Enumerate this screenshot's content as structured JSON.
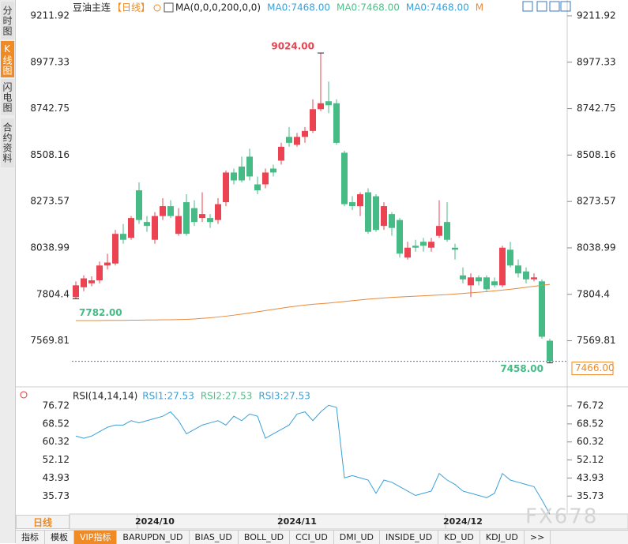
{
  "chart_data": [
    {
      "type": "candlestick",
      "title": "豆油主连",
      "period": "【日线】",
      "indicator": "MA(0,0,0,200,0,0)",
      "legend": [
        {
          "label": "MA0:7468.00",
          "color": "#3aa0d8"
        },
        {
          "label": "MA0:7468.00",
          "color": "#4fbf8a"
        },
        {
          "label": "MA0:7468.00",
          "color": "#3aa0d8"
        },
        {
          "label": "M",
          "color": "#e8883a"
        }
      ],
      "categories": [
        null,
        null,
        null,
        null,
        null,
        null,
        null,
        null,
        null,
        null,
        "2024/10",
        null,
        null,
        null,
        null,
        null,
        null,
        null,
        null,
        null,
        null,
        null,
        null,
        null,
        null,
        null,
        null,
        null,
        "2024/11",
        null,
        null,
        null,
        null,
        null,
        null,
        null,
        null,
        null,
        null,
        null,
        null,
        null,
        null,
        null,
        null,
        null,
        null,
        null,
        null,
        "2024/12",
        null,
        null,
        null,
        null,
        null,
        null,
        null,
        null,
        null,
        null,
        null
      ],
      "open": [
        7790,
        7840,
        7860,
        7875,
        7950,
        7960,
        8110,
        8090,
        8330,
        8170,
        8080,
        8200,
        8250,
        8110,
        8270,
        8240,
        8190,
        8190,
        8180,
        8270,
        8420,
        8450,
        8500,
        8360,
        8360,
        8440,
        8480,
        8600,
        8560,
        8600,
        8630,
        8740,
        8780,
        8770,
        8520,
        8270,
        8250,
        8320,
        8300,
        8150,
        8210,
        8180,
        7990,
        8050,
        8070,
        8040,
        8100,
        8170,
        8040,
        7900,
        7850,
        7890,
        7890,
        7870,
        7850,
        8030,
        7950,
        7920,
        7880,
        7870,
        7570
      ],
      "high": [
        7870,
        7900,
        7895,
        7970,
        8010,
        8130,
        8160,
        8200,
        8370,
        8200,
        8220,
        8290,
        8280,
        8240,
        8310,
        8280,
        8320,
        8210,
        8290,
        8430,
        8440,
        8500,
        8540,
        8400,
        8440,
        8460,
        8570,
        8650,
        8620,
        8650,
        8790,
        9024,
        8880,
        8790,
        8530,
        8300,
        8320,
        8340,
        8310,
        8270,
        8220,
        8190,
        8070,
        8080,
        8090,
        8090,
        8280,
        8270,
        8060,
        7940,
        7910,
        7900,
        7900,
        7890,
        8050,
        8070,
        7980,
        7940,
        7910,
        7880,
        7580
      ],
      "low": [
        7782,
        7820,
        7845,
        7860,
        7930,
        7950,
        8060,
        8080,
        8160,
        8120,
        8060,
        8180,
        8190,
        8100,
        8100,
        8150,
        8170,
        8140,
        8160,
        8250,
        8360,
        8370,
        8380,
        8310,
        8340,
        8400,
        8460,
        8550,
        8550,
        8570,
        8620,
        8730,
        8720,
        8560,
        8250,
        8230,
        8200,
        8110,
        8120,
        8130,
        8100,
        7990,
        7980,
        8020,
        8020,
        8020,
        8090,
        8070,
        7980,
        7860,
        7790,
        7850,
        7820,
        7840,
        7840,
        7940,
        7890,
        7860,
        7870,
        7580,
        7458
      ],
      "close": [
        7850,
        7885,
        7875,
        7950,
        7965,
        8110,
        8080,
        8190,
        8180,
        8150,
        8200,
        8250,
        8200,
        8200,
        8110,
        8170,
        8210,
        8170,
        8260,
        8420,
        8380,
        8380,
        8400,
        8330,
        8420,
        8420,
        8550,
        8570,
        8600,
        8630,
        8740,
        8770,
        8760,
        8570,
        8260,
        8250,
        8310,
        8120,
        8130,
        8250,
        8140,
        8010,
        8040,
        8040,
        8050,
        8070,
        8150,
        8080,
        8030,
        7880,
        7890,
        7870,
        7830,
        7850,
        8040,
        7950,
        7910,
        7880,
        7890,
        7590,
        7466
      ],
      "up_color": "#eb4352",
      "down_color": "#46bb86",
      "ma": {
        "color": "#e8883a",
        "values": [
          7672,
          7672,
          7672,
          7672,
          7673,
          7673,
          7673,
          7674,
          7674,
          7675,
          7675,
          7676,
          7676,
          7677,
          7678,
          7680,
          7683,
          7686,
          7690,
          7694,
          7699,
          7704,
          7710,
          7716,
          7722,
          7728,
          7734,
          7740,
          7745,
          7750,
          7754,
          7757,
          7760,
          7764,
          7768,
          7772,
          7776,
          7780,
          7783,
          7786,
          7789,
          7791,
          7793,
          7795,
          7797,
          7799,
          7801,
          7803,
          7806,
          7809,
          7812,
          7815,
          7818,
          7822,
          7826,
          7830,
          7835,
          7840,
          7845,
          7850,
          7855
        ]
      },
      "annotations": [
        {
          "value": 9024,
          "label": "9024.00",
          "color": "#eb4352"
        },
        {
          "value": 7782,
          "label": "7782.00",
          "color": "#46bb86"
        },
        {
          "value": 7458,
          "label": "7458.00",
          "color": "#46bb86"
        }
      ],
      "last_price": {
        "value": 7466,
        "label": "7466.00"
      },
      "ylim": [
        7356.6,
        9259.8
      ],
      "yticks": [
        9211.92,
        8977.33,
        8742.75,
        8508.16,
        8273.57,
        8038.99,
        7804.4,
        7569.81
      ]
    },
    {
      "type": "line",
      "title": "RSI(14,14,14)",
      "legend": [
        {
          "label": "RSI1:27.53",
          "color": "#3aa0d8"
        },
        {
          "label": "RSI2:27.53",
          "color": "#4fbf8a"
        },
        {
          "label": "RSI3:27.53",
          "color": "#3aa0d8"
        }
      ],
      "color": "#3aa0d8",
      "values": [
        63,
        62,
        63,
        65,
        67,
        68,
        68,
        70,
        69,
        70,
        71,
        72,
        74,
        70,
        64,
        66,
        68,
        69,
        70,
        68,
        72,
        70,
        73,
        72,
        62,
        64,
        66,
        68,
        73,
        74,
        70,
        74,
        77,
        76,
        44,
        45,
        44,
        43,
        37,
        43,
        42,
        40,
        38,
        36,
        37,
        38,
        46,
        43,
        41,
        38,
        37,
        36,
        35,
        37,
        46,
        43,
        42,
        41,
        40,
        34,
        27.53
      ],
      "ylim": [
        26.5,
        82.83
      ],
      "yticks": [
        76.72,
        68.52,
        60.32,
        52.12,
        43.93,
        35.73
      ]
    }
  ],
  "sidebar": [
    "分时图",
    "K线图",
    "闪电图",
    "合约资料"
  ],
  "period_button": "日线",
  "tabs": [
    "指标",
    "模板",
    "VIP指标",
    "BARUPDN_UD",
    "BIAS_UD",
    "BOLL_UD",
    "CCI_UD",
    "DMI_UD",
    "INSIDE_UD",
    "KD_UD",
    "KDJ_UD",
    ">>"
  ],
  "watermark": "FX678"
}
